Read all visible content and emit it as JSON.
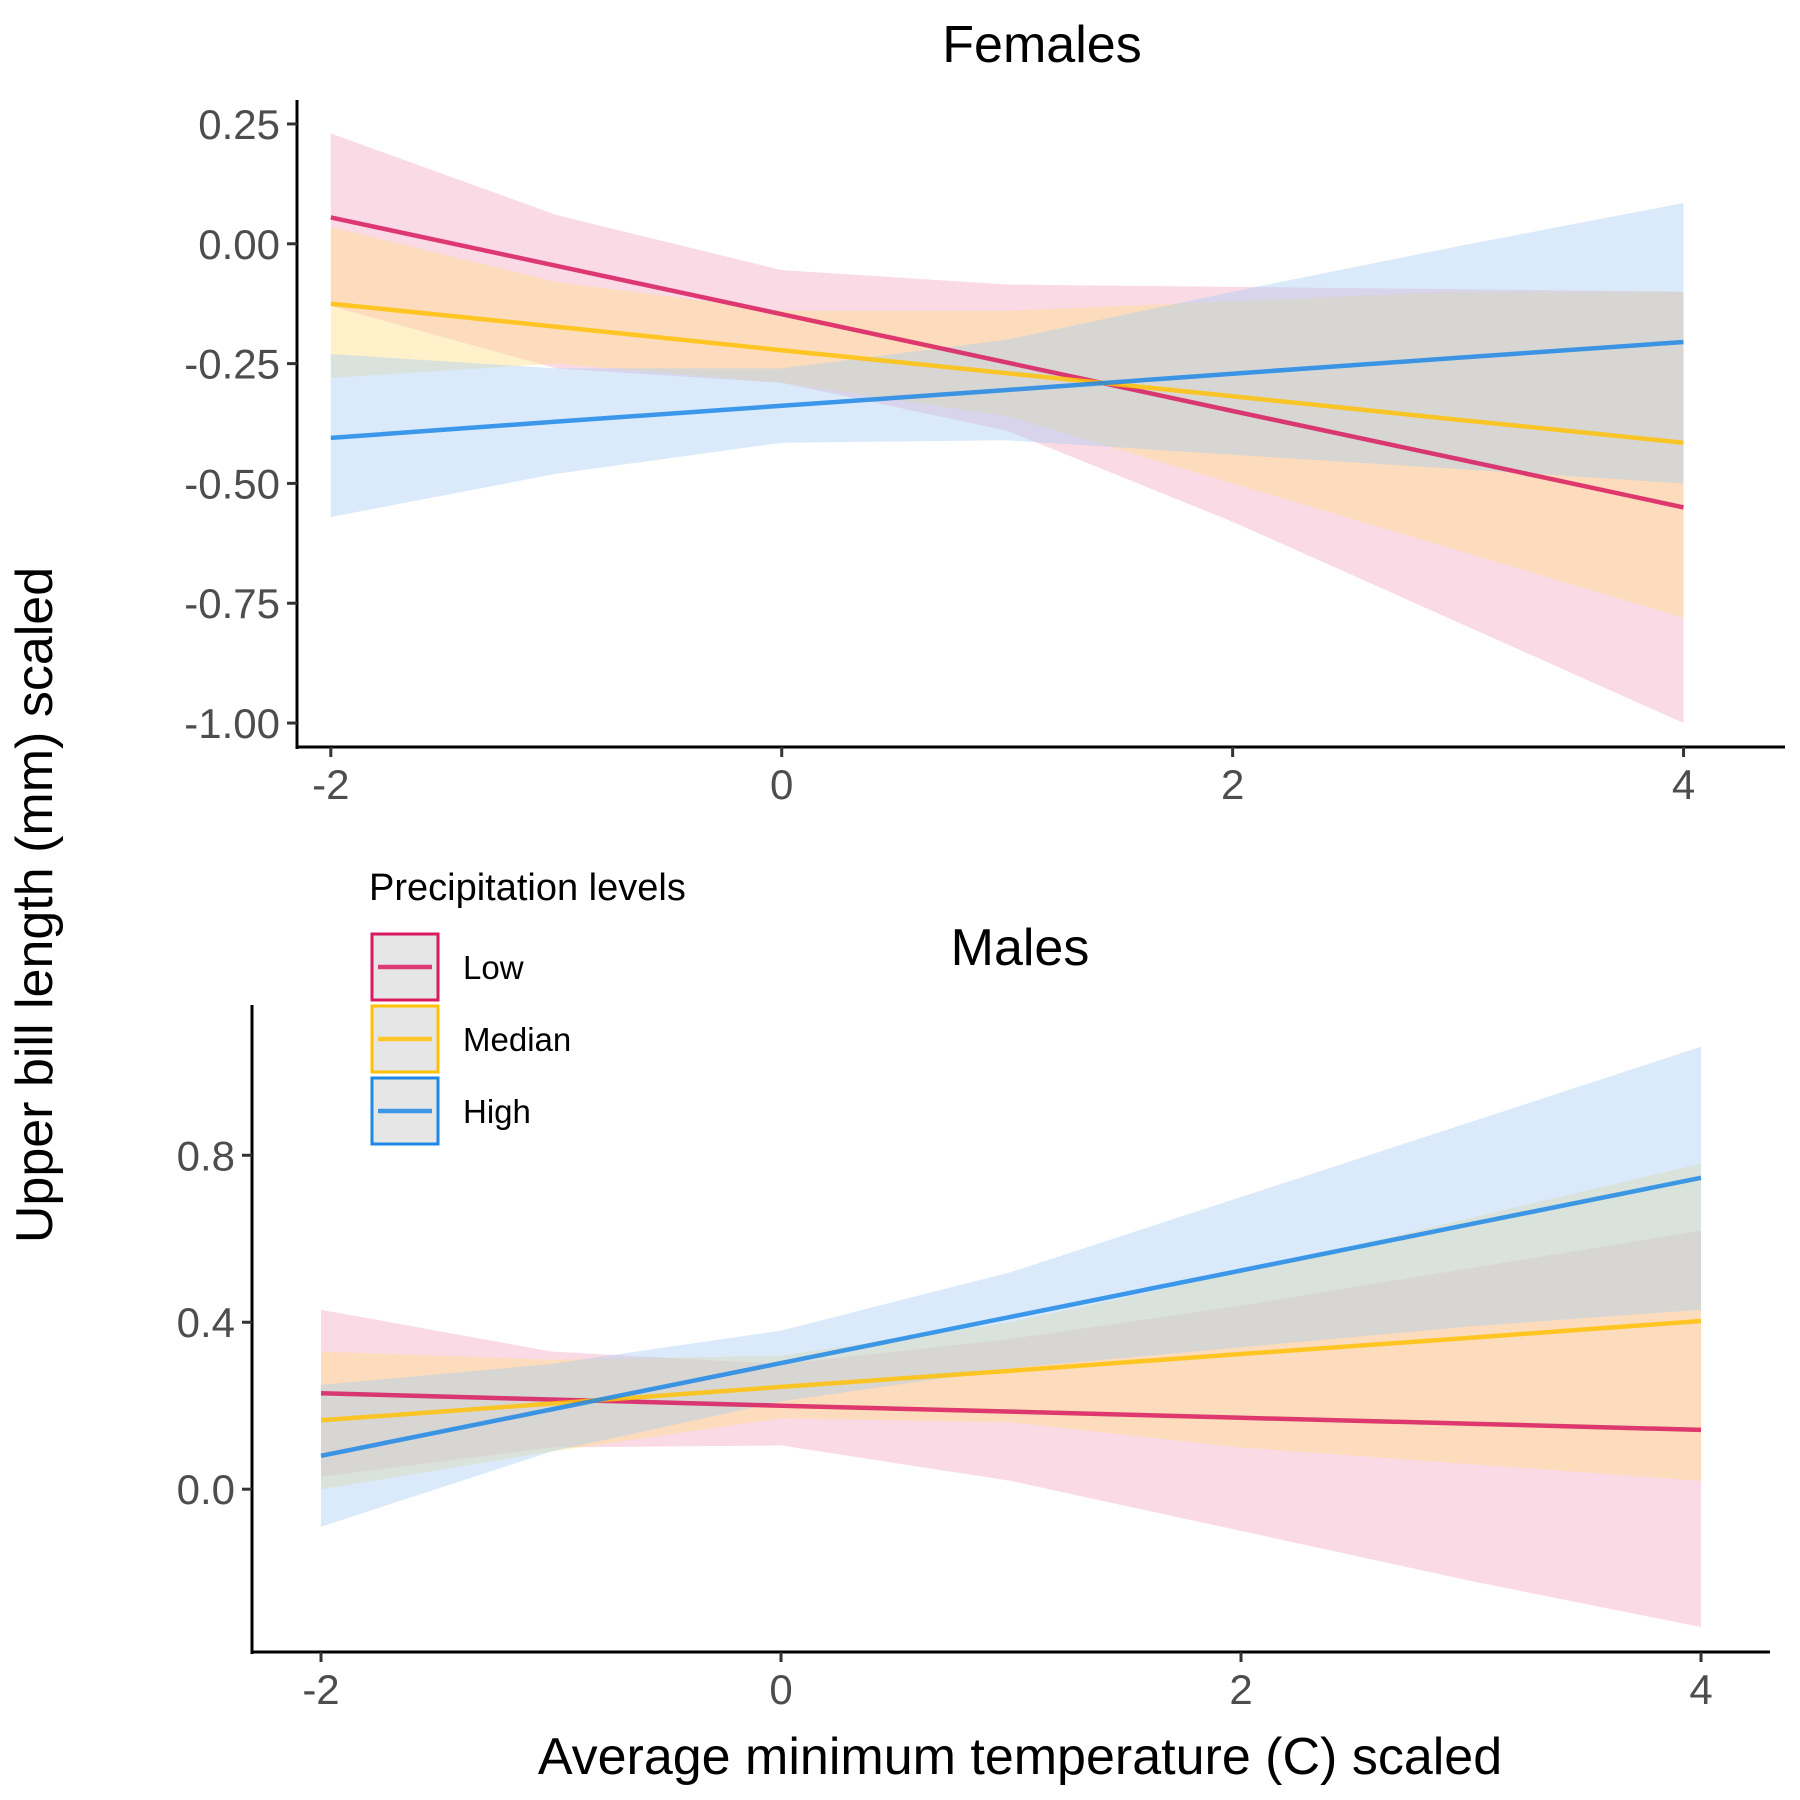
{
  "chart_data": {
    "type": "line",
    "ylabel": "Upper bill length (mm) scaled",
    "xlabel": "Average minimum temperature (C) scaled",
    "legend": {
      "title": "Precipitation levels",
      "entries": [
        {
          "key": "low",
          "label": "Low",
          "line": "#D81B60",
          "fill": "#F4A6C0"
        },
        {
          "key": "median",
          "label": "Median",
          "line": "#FFC107",
          "fill": "#FFE082"
        },
        {
          "key": "high",
          "label": "High",
          "line": "#1E88E5",
          "fill": "#A8CDF3"
        }
      ],
      "placement": "inside-bottom-panel-top-left"
    },
    "panels": [
      {
        "key": "females",
        "title": "Females",
        "xlim": [
          -2.15,
          4.45
        ],
        "ylim": [
          -1.05,
          0.3
        ],
        "x_ticks": [
          -2,
          0,
          2,
          4
        ],
        "x_tick_labels": [
          "-2",
          "0",
          "2",
          "4"
        ],
        "y_ticks": [
          0.25,
          0.0,
          -0.25,
          -0.5,
          -0.75,
          -1.0
        ],
        "y_tick_labels": [
          "0.25",
          "0.00",
          "-0.25",
          "-0.50",
          "-0.75",
          "-1.00"
        ],
        "x": [
          -2,
          -1,
          0,
          1,
          2,
          3,
          4
        ],
        "series": [
          {
            "name": "Low",
            "values": [
              0.055,
              -0.046,
              -0.147,
              -0.248,
              -0.349,
              -0.449,
              -0.55
            ],
            "lower": [
              -0.13,
              -0.26,
              -0.29,
              -0.39,
              -0.58,
              -0.79,
              -1.0
            ],
            "upper": [
              0.23,
              0.06,
              -0.055,
              -0.085,
              -0.09,
              -0.095,
              -0.1
            ]
          },
          {
            "name": "Median",
            "values": [
              -0.125,
              -0.173,
              -0.222,
              -0.27,
              -0.318,
              -0.367,
              -0.415
            ],
            "lower": [
              -0.28,
              -0.25,
              -0.29,
              -0.36,
              -0.5,
              -0.64,
              -0.78
            ],
            "upper": [
              0.035,
              -0.08,
              -0.14,
              -0.14,
              -0.12,
              -0.1,
              -0.1
            ]
          },
          {
            "name": "High",
            "values": [
              -0.405,
              -0.371,
              -0.338,
              -0.305,
              -0.271,
              -0.238,
              -0.205
            ],
            "lower": [
              -0.57,
              -0.48,
              -0.415,
              -0.41,
              -0.44,
              -0.47,
              -0.5
            ],
            "upper": [
              -0.23,
              -0.26,
              -0.26,
              -0.2,
              -0.1,
              -0.005,
              0.085
            ]
          }
        ]
      },
      {
        "key": "males",
        "title": "Males",
        "xlim": [
          -2.3,
          4.3
        ],
        "ylim": [
          -0.39,
          1.16
        ],
        "x_ticks": [
          -2,
          0,
          2,
          4
        ],
        "x_tick_labels": [
          "-2",
          "0",
          "2",
          "4"
        ],
        "y_ticks": [
          0.8,
          0.4,
          0.0
        ],
        "y_tick_labels": [
          "0.8",
          "0.4",
          "0.0"
        ],
        "x": [
          -2,
          -1,
          0,
          1,
          2,
          3,
          4
        ],
        "series": [
          {
            "name": "Low",
            "values": [
              0.23,
              0.215,
              0.2,
              0.186,
              0.171,
              0.157,
              0.142
            ],
            "lower": [
              0.03,
              0.1,
              0.105,
              0.02,
              -0.1,
              -0.22,
              -0.33
            ],
            "upper": [
              0.43,
              0.33,
              0.3,
              0.36,
              0.44,
              0.53,
              0.62
            ]
          },
          {
            "name": "Median",
            "values": [
              0.165,
              0.205,
              0.245,
              0.284,
              0.324,
              0.363,
              0.403
            ],
            "lower": [
              0.0,
              0.09,
              0.17,
              0.16,
              0.1,
              0.06,
              0.02
            ],
            "upper": [
              0.33,
              0.31,
              0.32,
              0.4,
              0.52,
              0.65,
              0.78
            ]
          },
          {
            "name": "High",
            "values": [
              0.08,
              0.191,
              0.302,
              0.413,
              0.524,
              0.635,
              0.746
            ],
            "lower": [
              -0.09,
              0.09,
              0.21,
              0.29,
              0.34,
              0.39,
              0.43
            ],
            "upper": [
              0.25,
              0.3,
              0.38,
              0.52,
              0.7,
              0.88,
              1.06
            ]
          }
        ]
      }
    ]
  }
}
